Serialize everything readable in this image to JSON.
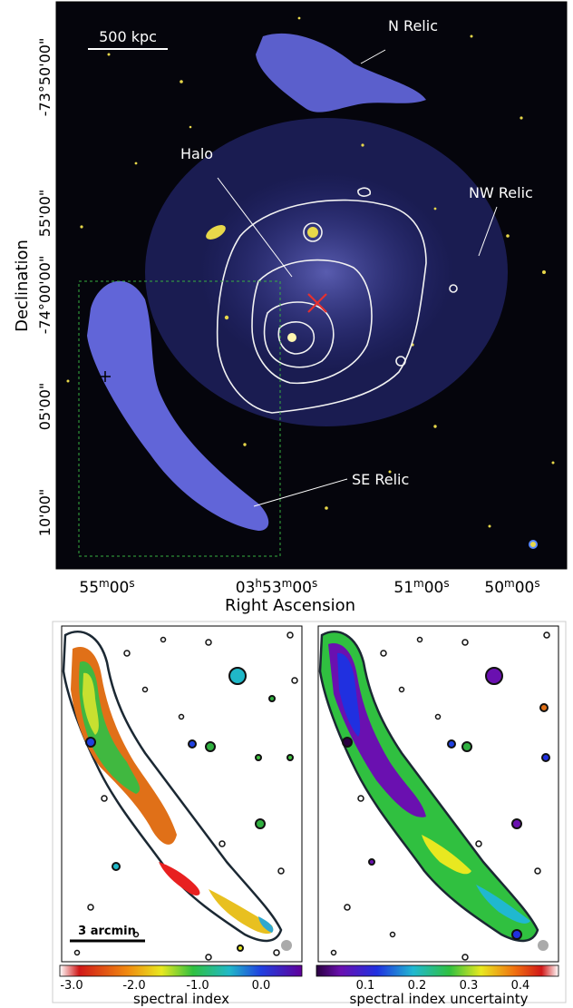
{
  "top_panel": {
    "scalebar_label": "500 kpc",
    "labels": {
      "n_relic": "N Relic",
      "halo": "Halo",
      "nw_relic": "NW Relic",
      "se_relic": "SE Relic"
    },
    "y_axis_title": "Declination",
    "y_ticks": [
      "-73°50'00\"",
      "55'00\"",
      "-74°00'00\"",
      "05'00\"",
      "10'00\""
    ],
    "x_axis_title": "Right Ascension",
    "x_ticks": [
      {
        "main": "55",
        "m": "m",
        "rest": "00",
        "s": "s"
      },
      {
        "main": "03",
        "h": "h",
        "mid": "53",
        "m": "m",
        "rest": "00",
        "s": "s"
      },
      {
        "main": "51",
        "m": "m",
        "rest": "00",
        "s": "s"
      },
      {
        "main": "50",
        "m": "m",
        "rest": "00",
        "s": "s"
      }
    ],
    "colors": {
      "background": "#05050c",
      "emission": "#5a5ee0",
      "stars": "#e8d84a",
      "contour": "#f2f2f2",
      "marker": "#e53030",
      "box": "#38b040"
    }
  },
  "bottom_panels": {
    "scalebar_label": "3 arcmin",
    "left_colorbar": {
      "title": "spectral index",
      "ticks": [
        "-3.0",
        "-2.0",
        "-1.0",
        "0.0"
      ]
    },
    "right_colorbar": {
      "title": "spectral index uncertainty",
      "ticks": [
        "0.1",
        "0.2",
        "0.3",
        "0.4"
      ]
    }
  }
}
